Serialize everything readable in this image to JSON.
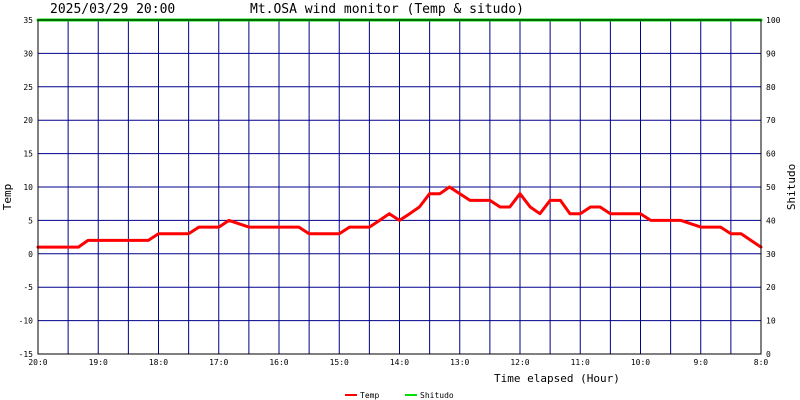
{
  "header": {
    "timestamp": "2025/03/29 20:00",
    "title": "Mt.OSA wind monitor (Temp & situdo)"
  },
  "chart_data": {
    "type": "line",
    "title": "Mt.OSA wind monitor (Temp & situdo)",
    "xlabel": "Time elapsed (Hour)",
    "ylabel": "Temp",
    "y2label": "Shitudo",
    "xlim": [
      0,
      12
    ],
    "xreversed_hours_from_latest": true,
    "x_tick_values": [
      0,
      1,
      2,
      3,
      4,
      5,
      6,
      7,
      8,
      9,
      10,
      11,
      12
    ],
    "x_tick_labels": [
      "20:0",
      "19:0",
      "18:0",
      "17:0",
      "16:0",
      "15:0",
      "14:0",
      "13:0",
      "12:0",
      "11:0",
      "10:0",
      "9:0",
      "8:0"
    ],
    "ylim": [
      -15,
      35
    ],
    "y_ticks": [
      -15,
      -10,
      -5,
      0,
      5,
      10,
      15,
      20,
      25,
      30,
      35
    ],
    "y2lim": [
      0,
      100
    ],
    "y2_ticks": [
      0,
      10,
      20,
      30,
      40,
      50,
      60,
      70,
      80,
      90,
      100
    ],
    "grid": true,
    "legend_position": "bottom-center",
    "series": [
      {
        "name": "Temp",
        "color": "#ff0000",
        "axis": "left",
        "x": [
          0,
          0.67,
          0.83,
          1.0,
          1.83,
          2.0,
          2.5,
          2.67,
          3.0,
          3.17,
          3.5,
          3.67,
          4.33,
          4.5,
          4.67,
          5.0,
          5.17,
          5.5,
          5.67,
          5.83,
          6.0,
          6.17,
          6.33,
          6.5,
          6.67,
          6.83,
          7.0,
          7.17,
          7.5,
          7.67,
          7.83,
          8.0,
          8.17,
          8.33,
          8.5,
          8.67,
          8.83,
          9.0,
          9.17,
          9.33,
          9.5,
          9.67,
          10.0,
          10.17,
          10.33,
          10.5,
          10.67,
          11.0,
          11.17,
          11.33,
          11.5,
          11.67,
          12.0
        ],
        "values": [
          1,
          1,
          2,
          2,
          2,
          3,
          3,
          4,
          4,
          5,
          4,
          4,
          4,
          3,
          3,
          3,
          4,
          4,
          5,
          6,
          5,
          6,
          7,
          9,
          9,
          10,
          9,
          8,
          8,
          7,
          7,
          9,
          7,
          6,
          8,
          8,
          6,
          6,
          7,
          7,
          6,
          6,
          6,
          5,
          5,
          5,
          5,
          4,
          4,
          4,
          3,
          3,
          1
        ]
      },
      {
        "name": "Shitudo",
        "color": "#00dd00",
        "axis": "right",
        "x": [
          0,
          12
        ],
        "values": [
          100,
          100
        ]
      }
    ]
  }
}
